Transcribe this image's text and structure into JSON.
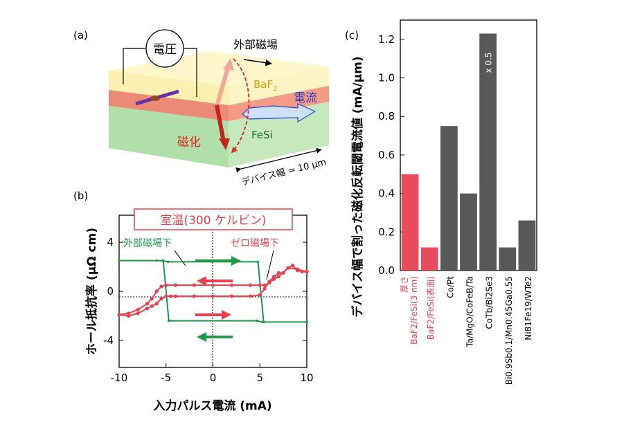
{
  "colors": {
    "red": "#e8414f",
    "green": "#1f9a4a",
    "gray": "#5a5a5a",
    "current_blue": "#2940c8",
    "bar_red": "#e84b5b",
    "bar_gray": "#595959"
  },
  "panel_a": {
    "label": "(a)",
    "voltage": "電圧",
    "external_field": "外部磁場",
    "baf2": "BaF",
    "baf2_sub": "2",
    "current": "電流",
    "fesi": "FeSi",
    "magnetization": "磁化",
    "device_width": "デバイス幅 = 10 μm"
  },
  "panel_b": {
    "label": "(b)",
    "room_temp": "室温(300 ケルビン)",
    "under_external": "外部磁場下",
    "under_zero": "ゼロ磁場下"
  },
  "panel_c": {
    "label": "(c)",
    "scale_note": "x 0.5"
  },
  "chart_data": [
    {
      "type": "line",
      "panel": "(b)",
      "xlabel": "入力パルス電流 (mA)",
      "ylabel": "ホール抵抗率 (μΩ cm)",
      "xlim": [
        -10,
        10
      ],
      "ylim": [
        -6.2,
        6.2
      ],
      "xticks": [
        -10,
        -5,
        0,
        5,
        10
      ],
      "yticks": [
        -4,
        0,
        4
      ],
      "series": [
        {
          "name": "外部磁場下",
          "color": "#1f9a4a",
          "x": [
            -10,
            -6,
            -5.3,
            -4.7,
            4.7,
            5.3,
            10,
            10,
            5.4,
            4.8,
            -4.8,
            -5.4,
            -10
          ],
          "y": [
            2.5,
            2.5,
            2.5,
            -2.4,
            -2.4,
            -2.5,
            -2.5,
            -2.5,
            -2.5,
            2.4,
            2.4,
            2.5,
            2.5
          ]
        },
        {
          "name": "ゼロ磁場下",
          "color": "#e8414f",
          "x": [
            -10,
            -9,
            -8,
            -7,
            -6.5,
            -6,
            -5.5,
            -5,
            -4.5,
            -4,
            -2,
            0,
            2,
            4,
            5,
            5.5,
            6,
            6.5,
            7,
            7.5,
            8,
            8.5,
            9,
            9.5,
            10,
            10,
            9,
            8,
            7,
            6.5,
            6,
            5.5,
            5,
            4,
            2,
            0,
            -2,
            -4,
            -5,
            -5.5,
            -6,
            -6.5,
            -7,
            -8,
            -9,
            -10
          ],
          "y": [
            -1.9,
            -2.0,
            -1.8,
            -1.4,
            -1.2,
            -1.0,
            -0.6,
            -0.4,
            -0.4,
            -0.4,
            -0.4,
            -0.4,
            -0.4,
            -0.4,
            -0.3,
            0.2,
            0.8,
            1.2,
            1.5,
            1.5,
            1.9,
            2.1,
            1.7,
            1.6,
            1.6,
            1.6,
            1.8,
            1.9,
            1.2,
            1.0,
            0.7,
            0.5,
            0.5,
            0.5,
            0.5,
            0.5,
            0.5,
            0.5,
            0.5,
            0.4,
            0.0,
            -0.6,
            -1.0,
            -1.5,
            -1.8,
            -1.9
          ]
        }
      ]
    },
    {
      "type": "bar",
      "panel": "(c)",
      "ylabel": "デバイス幅で割った磁化反転閾電流値 (mA/μm)",
      "ylim": [
        0,
        1.3
      ],
      "yticks": [
        0.0,
        0.2,
        0.4,
        0.6,
        0.8,
        1.0,
        1.2
      ],
      "categories": [
        "厚さ BaF2/FeSi(3 nm)",
        "BaF2/FeSi(表面)",
        "Co/Pt",
        "Ta/MgO/CoFeB/Ta",
        "CoTb/Bi2Se3",
        "Bi0.9Sb0.1/Mn0.45Ga0.55",
        "Ni81Fe19/WTe2"
      ],
      "values": [
        0.5,
        0.12,
        0.75,
        0.4,
        1.23,
        0.12,
        0.26
      ],
      "bar_colors": [
        "#e84b5b",
        "#e84b5b",
        "#595959",
        "#595959",
        "#595959",
        "#595959",
        "#595959"
      ],
      "label_colors": [
        "#e8414f",
        "#e8414f",
        "#000000",
        "#000000",
        "#000000",
        "#000000",
        "#000000"
      ]
    }
  ]
}
